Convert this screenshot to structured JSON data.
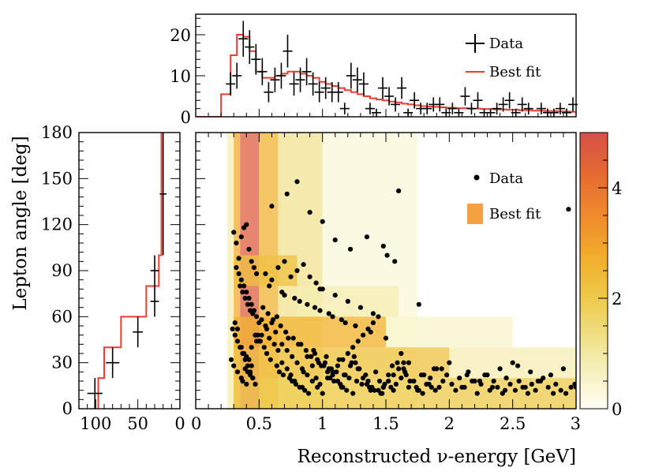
{
  "chart_data": {
    "type": "scatter",
    "title": "",
    "xlabel": "Reconstructed ν-energy [GeV]",
    "ylabel": "Lepton angle [deg]",
    "xlim": [
      0,
      3
    ],
    "ylim": [
      0,
      180
    ],
    "top_panel": {
      "type": "line",
      "ylim": [
        0,
        25
      ],
      "yticks": [
        "0",
        "10",
        "20"
      ],
      "legend": [
        "Data",
        "Best fit"
      ],
      "data": {
        "x": [
          0.225,
          0.275,
          0.325,
          0.375,
          0.425,
          0.475,
          0.525,
          0.575,
          0.625,
          0.675,
          0.725,
          0.775,
          0.825,
          0.875,
          0.925,
          0.975,
          1.025,
          1.075,
          1.125,
          1.175,
          1.225,
          1.275,
          1.325,
          1.375,
          1.425,
          1.475,
          1.525,
          1.575,
          1.625,
          1.675,
          1.725,
          1.775,
          1.825,
          1.875,
          1.925,
          1.975,
          2.025,
          2.075,
          2.125,
          2.175,
          2.225,
          2.275,
          2.325,
          2.375,
          2.425,
          2.475,
          2.525,
          2.575,
          2.625,
          2.675,
          2.725,
          2.775,
          2.825,
          2.875,
          2.925,
          2.975
        ],
        "y": [
          0,
          8,
          10,
          19,
          17,
          14,
          11,
          6,
          9,
          10,
          16,
          8,
          9,
          11,
          8,
          6,
          7,
          6,
          6,
          2,
          10,
          9,
          8,
          2,
          1,
          7,
          5,
          3,
          7,
          1,
          4,
          2,
          2,
          3,
          3,
          1,
          2,
          1,
          5,
          2,
          4,
          1,
          1,
          2,
          3,
          4,
          1,
          3,
          2,
          0,
          2,
          1,
          1,
          2,
          1,
          3
        ]
      },
      "best_fit": {
        "x": [
          0.25,
          0.3,
          0.35,
          0.4,
          0.45,
          0.5,
          0.55,
          0.6,
          0.65,
          0.7,
          0.75,
          0.8,
          0.85,
          0.9,
          0.95,
          1.0,
          1.05,
          1.1,
          1.15,
          1.2,
          1.25,
          1.3,
          1.35,
          1.4,
          1.45,
          1.5,
          1.55,
          1.6,
          1.65,
          1.7,
          1.75,
          1.8,
          1.85,
          1.9,
          1.95,
          2.0,
          2.1,
          2.2,
          2.3,
          2.4,
          2.5,
          2.6,
          2.7,
          2.8,
          2.9,
          3.0
        ],
        "y": [
          5.5,
          15,
          20,
          19.5,
          16,
          11,
          9.5,
          9.5,
          10,
          10.5,
          11,
          11,
          10.5,
          10,
          9.5,
          8.5,
          8,
          7.5,
          7,
          6.5,
          6,
          5.5,
          5,
          4.5,
          4.2,
          4,
          3.7,
          3.5,
          3.2,
          3,
          2.8,
          2.6,
          2.5,
          2.4,
          2.3,
          2.2,
          2.1,
          2,
          1.9,
          1.8,
          1.7,
          1.6,
          1.5,
          1.4,
          1.3,
          1.2
        ]
      }
    },
    "left_panel": {
      "type": "line",
      "xlim_reversed": [
        120,
        0
      ],
      "xticks": [
        "100",
        "50",
        "0"
      ],
      "data": {
        "angle": [
          10,
          30,
          50,
          70,
          90,
          140
        ],
        "counts": [
          101,
          80,
          50,
          30,
          30,
          20
        ],
        "err": [
          9,
          8,
          6,
          5,
          5,
          4
        ]
      },
      "best_fit": {
        "angle_edges": [
          0,
          20,
          40,
          60,
          80,
          100,
          180
        ],
        "counts": [
          97,
          90,
          70,
          40,
          25,
          22
        ]
      }
    },
    "main_panel": {
      "type": "scatter",
      "xticks": [
        "0",
        "0.5",
        "1",
        "1.5",
        "2",
        "2.5",
        "3"
      ],
      "yticks": [
        "0",
        "30",
        "60",
        "90",
        "120",
        "150",
        "180"
      ],
      "legend": [
        "Data",
        "Best fit"
      ],
      "colorbar": {
        "range": [
          0,
          5
        ],
        "ticks": [
          "0",
          "2",
          "4"
        ]
      },
      "data": {
        "energy": [
          0.3,
          0.32,
          0.34,
          0.36,
          0.38,
          0.4,
          0.42,
          0.44,
          0.46,
          0.48,
          0.35,
          0.37,
          0.39,
          0.41,
          0.43,
          0.45,
          0.31,
          0.33,
          0.47,
          0.5,
          0.36,
          0.38,
          0.4,
          0.42,
          0.44,
          0.39,
          0.41,
          0.43,
          0.45,
          0.37,
          0.52,
          0.55,
          0.58,
          0.62,
          0.65,
          0.68,
          0.72,
          0.75,
          0.78,
          0.82,
          0.85,
          0.88,
          0.92,
          0.95,
          0.98,
          1.02,
          1.05,
          1.08,
          1.12,
          1.15,
          1.18,
          1.22,
          1.25,
          1.28,
          1.32,
          1.35,
          1.38,
          1.42,
          1.45,
          1.48,
          1.52,
          1.55,
          1.58,
          1.62,
          1.65,
          1.68,
          1.72,
          1.75,
          1.78,
          1.82,
          1.85,
          1.88,
          1.92,
          1.95,
          1.98,
          2.02,
          2.05,
          2.08,
          2.12,
          2.15,
          2.18,
          2.22,
          2.25,
          2.28,
          2.32,
          2.35,
          2.38,
          2.42,
          2.45,
          2.48,
          2.52,
          2.55,
          2.58,
          2.62,
          2.65,
          2.68,
          2.72,
          2.78,
          2.82,
          2.88,
          2.92,
          2.96,
          2.99,
          0.55,
          0.6,
          0.65,
          0.7,
          0.75,
          0.8,
          0.85,
          0.9,
          0.95,
          1.0,
          1.1,
          1.2,
          1.3,
          1.4,
          0.58,
          0.68,
          0.78,
          0.88,
          0.98,
          1.08,
          1.18,
          0.63,
          0.73,
          0.83,
          0.93,
          1.03,
          1.13,
          1.23,
          0.53,
          0.57,
          0.61,
          0.67,
          0.71,
          0.77,
          0.81,
          0.87,
          0.91,
          0.97,
          1.01,
          1.07,
          1.11,
          1.17,
          1.21,
          1.27,
          1.31,
          1.37,
          1.41,
          1.47,
          1.51,
          1.57,
          0.32,
          0.34,
          0.36,
          0.38,
          0.4,
          0.42,
          0.44,
          0.46,
          0.48,
          0.5,
          0.29,
          0.31,
          0.33,
          0.35,
          0.37,
          0.39,
          0.41,
          0.43,
          0.45,
          0.47,
          0.49,
          0.51,
          0.54,
          0.56,
          0.59,
          0.64,
          0.66,
          0.69,
          0.74,
          0.76,
          0.79,
          0.84,
          0.86,
          0.89,
          0.94,
          0.96,
          0.99,
          1.04,
          1.06,
          1.09,
          1.14,
          1.16,
          1.19,
          1.24,
          1.26,
          1.29,
          1.34,
          1.36,
          1.39,
          1.44,
          1.46,
          1.49,
          1.54,
          1.56,
          1.59,
          1.64,
          1.66,
          1.69,
          1.74,
          1.76,
          1.79,
          1.84,
          1.86,
          1.89,
          1.94,
          2.14,
          2.24,
          2.34,
          2.44,
          2.54,
          2.64,
          2.74,
          2.84,
          2.94,
          0.6,
          0.72,
          0.8,
          0.9,
          1.0,
          1.1,
          1.22,
          1.35,
          1.48,
          1.6,
          1.76,
          0.98,
          0.7,
          0.82,
          0.94,
          1.05,
          1.15,
          1.26,
          1.38,
          1.5,
          1.62,
          0.28,
          0.3,
          0.33,
          0.36,
          0.4,
          0.44,
          0.48,
          0.52,
          0.56,
          0.6,
          0.64,
          0.68,
          0.72,
          0.76,
          0.8,
          0.84,
          0.88,
          0.92,
          0.96,
          1.0,
          1.04,
          1.08,
          1.12,
          1.16,
          1.2,
          1.24,
          1.28,
          1.32,
          1.36,
          1.4,
          1.44,
          1.48,
          1.52,
          1.56,
          1.6,
          1.64,
          1.68,
          1.72,
          1.8,
          1.9,
          2.0,
          2.1,
          2.2,
          2.3,
          2.4,
          2.5,
          2.6,
          2.7,
          2.8,
          2.9,
          3.0
        ],
        "angle": [
          115,
          108,
          98,
          112,
          118,
          120,
          104,
          96,
          92,
          88,
          80,
          76,
          72,
          68,
          64,
          62,
          56,
          52,
          48,
          44,
          40,
          36,
          34,
          32,
          28,
          26,
          24,
          22,
          20,
          18,
          58,
          54,
          46,
          42,
          38,
          30,
          26,
          22,
          18,
          14,
          24,
          34,
          28,
          20,
          16,
          30,
          26,
          22,
          18,
          14,
          22,
          28,
          34,
          26,
          20,
          16,
          12,
          24,
          18,
          14,
          22,
          28,
          16,
          20,
          24,
          30,
          18,
          12,
          22,
          16,
          20,
          26,
          14,
          18,
          22,
          16,
          12,
          20,
          14,
          24,
          18,
          10,
          16,
          22,
          12,
          18,
          14,
          10,
          20,
          16,
          12,
          18,
          14,
          10,
          16,
          12,
          18,
          14,
          10,
          12,
          10,
          14,
          16,
          88,
          84,
          92,
          96,
          86,
          90,
          94,
          86,
          82,
          78,
          74,
          70,
          66,
          62,
          80,
          76,
          72,
          68,
          64,
          60,
          56,
          50,
          46,
          42,
          38,
          34,
          32,
          30,
          66,
          62,
          58,
          54,
          50,
          46,
          42,
          38,
          34,
          30,
          28,
          26,
          24,
          22,
          20,
          18,
          16,
          14,
          12,
          10,
          100,
          96,
          92,
          88,
          84,
          80,
          76,
          72,
          68,
          64,
          60,
          56,
          52,
          48,
          44,
          40,
          36,
          32,
          28,
          24,
          20,
          16,
          48,
          44,
          40,
          36,
          32,
          28,
          24,
          22,
          20,
          18,
          16,
          14,
          12,
          10,
          36,
          32,
          28,
          24,
          20,
          18,
          16,
          14,
          12,
          10,
          30,
          26,
          22,
          18,
          14,
          12,
          10,
          16,
          14,
          12,
          30,
          26,
          22,
          18,
          14,
          12,
          10,
          16,
          14,
          12,
          26,
          22,
          18,
          14,
          12,
          28,
          24,
          20,
          16,
          130,
          132,
          140,
          148,
          128,
          122,
          110,
          104,
          112,
          106,
          142,
          68,
          78,
          74,
          70,
          66,
          62,
          58,
          54,
          50,
          46,
          36,
          32,
          28,
          24,
          20,
          16,
          40,
          44,
          48,
          52,
          56,
          60,
          42,
          38,
          34,
          30,
          26,
          22,
          18,
          14,
          10,
          20,
          24,
          28,
          32,
          36,
          40,
          44,
          48,
          52,
          56,
          60,
          14,
          18,
          22,
          26,
          30,
          14,
          18,
          22,
          26,
          30,
          14,
          18,
          22,
          26,
          30,
          14,
          18,
          22,
          26,
          14
        ]
      },
      "best_fit_regions": [
        {
          "x": [
            0.25,
            0.3
          ],
          "y": [
            0,
            180
          ],
          "level": 0.8
        },
        {
          "x": [
            0.3,
            0.35
          ],
          "y": [
            0,
            180
          ],
          "level": 2.8
        },
        {
          "x": [
            0.35,
            0.5
          ],
          "y": [
            0,
            180
          ],
          "level": 4.6
        },
        {
          "x": [
            0.5,
            0.65
          ],
          "y": [
            0,
            180
          ],
          "level": 2.6
        },
        {
          "x": [
            0.65,
            1.0
          ],
          "y": [
            0,
            180
          ],
          "level": 1.2
        },
        {
          "x": [
            1.0,
            1.75
          ],
          "y": [
            0,
            180
          ],
          "level": 0.35
        },
        {
          "x": [
            0.3,
            0.8
          ],
          "y": [
            80,
            100
          ],
          "level": 2.2
        },
        {
          "x": [
            0.8,
            1.6
          ],
          "y": [
            60,
            80
          ],
          "level": 0.8
        },
        {
          "x": [
            0.3,
            1.5
          ],
          "y": [
            40,
            60
          ],
          "level": 2.6
        },
        {
          "x": [
            1.5,
            2.5
          ],
          "y": [
            40,
            60
          ],
          "level": 0.5
        },
        {
          "x": [
            0.3,
            2.0
          ],
          "y": [
            20,
            40
          ],
          "level": 2.2
        },
        {
          "x": [
            2.0,
            3.0
          ],
          "y": [
            20,
            40
          ],
          "level": 0.8
        },
        {
          "x": [
            0.3,
            3.0
          ],
          "y": [
            0,
            20
          ],
          "level": 2.0
        }
      ]
    }
  }
}
